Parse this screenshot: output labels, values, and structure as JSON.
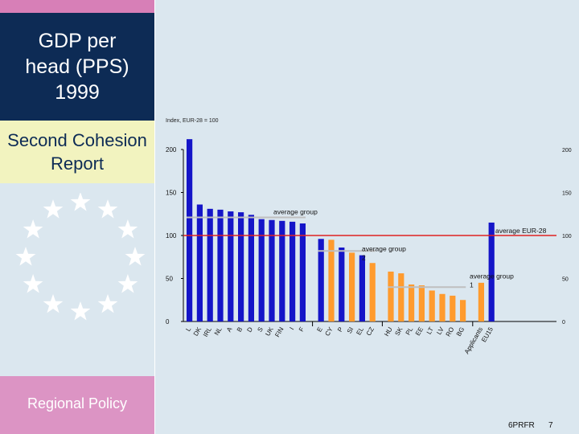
{
  "slide": {
    "title": "GDP per head (PPS) 1999",
    "subtitle": "Second Cohesion Report",
    "footer": "Regional Policy",
    "code": "6PRFR",
    "page": "7"
  },
  "colors": {
    "blue": "#1515c8",
    "orange": "#ff9b2e",
    "red": "#e02222",
    "avg_line": "#bfbfbf"
  },
  "chart_data": {
    "type": "bar",
    "ylabel": "Index, EUR-28 = 100",
    "ylim": [
      0,
      200
    ],
    "yticks": [
      0,
      50,
      100,
      150,
      200
    ],
    "grid": false,
    "groups": [
      {
        "categories": [
          "L",
          "DK",
          "IRL",
          "NL",
          "A",
          "B",
          "D",
          "S",
          "UK",
          "FIN",
          "I",
          "F"
        ],
        "values": [
          212,
          136,
          131,
          130,
          128,
          127,
          124,
          119,
          118,
          117,
          116,
          114
        ],
        "color": "blue"
      },
      {
        "categories": [
          "E",
          "CY",
          "P",
          "SI",
          "EL",
          "CZ"
        ],
        "values": [
          96,
          95,
          86,
          80,
          77,
          68
        ],
        "color": "blue",
        "second_color": "orange",
        "second_from": 1
      },
      {
        "categories": [
          "HU",
          "SK",
          "PL",
          "EE",
          "LT",
          "LV",
          "RO",
          "BG"
        ],
        "values": [
          58,
          56,
          43,
          42,
          36,
          32,
          30,
          25
        ],
        "color": "orange"
      },
      {
        "categories": [
          "Applicants",
          "EU15"
        ],
        "values": [
          45,
          115
        ],
        "colors": [
          "orange",
          "blue"
        ]
      }
    ],
    "annotations": [
      {
        "text": "average group 1",
        "value": 121
      },
      {
        "text": "average EUR-28",
        "value": 100
      },
      {
        "text": "average group 2",
        "value": 82
      },
      {
        "text": "average group 1",
        "value": 40
      }
    ]
  }
}
